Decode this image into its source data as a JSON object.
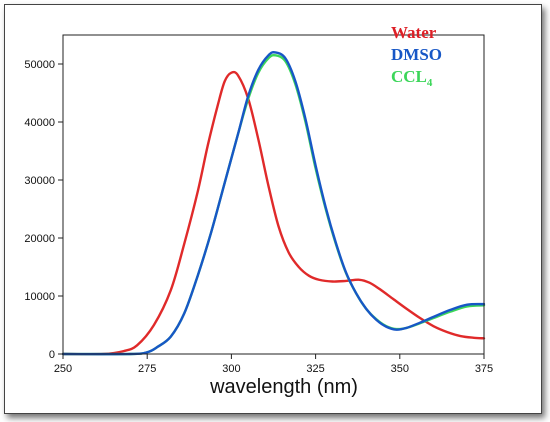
{
  "chart_data": {
    "type": "line",
    "title": "",
    "xlabel": "wavelength (nm)",
    "ylabel": "",
    "xlim": [
      250,
      375
    ],
    "ylim": [
      0,
      55000
    ],
    "x_ticks": [
      250,
      275,
      300,
      325,
      350,
      375
    ],
    "y_ticks": [
      0,
      10000,
      20000,
      30000,
      40000,
      50000
    ],
    "x_tick_labels": [
      "250",
      "275",
      "300",
      "325",
      "350",
      "375"
    ],
    "y_tick_labels": [
      "0",
      "10000",
      "20000",
      "30000",
      "40000",
      "50000"
    ],
    "grid": false,
    "legend_position": "top-right",
    "legend": [
      {
        "label": "Water",
        "sub": "",
        "color": "#dd1f26"
      },
      {
        "label": "DMSO",
        "sub": "",
        "color": "#1757c6"
      },
      {
        "label": "CCL",
        "sub": "4",
        "color": "#3cd65a"
      }
    ],
    "series": [
      {
        "name": "Water",
        "color": "#e02a2a",
        "points": [
          [
            250,
            0
          ],
          [
            262,
            0
          ],
          [
            268,
            500
          ],
          [
            272,
            1500
          ],
          [
            277,
            5000
          ],
          [
            282,
            11000
          ],
          [
            286,
            19000
          ],
          [
            290,
            28000
          ],
          [
            293,
            36000
          ],
          [
            296,
            43000
          ],
          [
            298,
            47000
          ],
          [
            300,
            48500
          ],
          [
            302,
            48000
          ],
          [
            305,
            44000
          ],
          [
            308,
            37000
          ],
          [
            311,
            29000
          ],
          [
            314,
            22000
          ],
          [
            317,
            17500
          ],
          [
            320,
            15000
          ],
          [
            323,
            13500
          ],
          [
            326,
            12800
          ],
          [
            330,
            12500
          ],
          [
            334,
            12600
          ],
          [
            338,
            12800
          ],
          [
            341,
            12300
          ],
          [
            344,
            11200
          ],
          [
            348,
            9500
          ],
          [
            352,
            7800
          ],
          [
            356,
            6200
          ],
          [
            360,
            4800
          ],
          [
            364,
            3800
          ],
          [
            368,
            3100
          ],
          [
            372,
            2800
          ],
          [
            375,
            2700
          ]
        ]
      },
      {
        "name": "CCL4",
        "color": "#3cd65a",
        "points": [
          [
            250,
            0
          ],
          [
            270,
            0
          ],
          [
            275,
            300
          ],
          [
            278,
            1200
          ],
          [
            282,
            3000
          ],
          [
            286,
            7000
          ],
          [
            290,
            13500
          ],
          [
            294,
            21000
          ],
          [
            298,
            29500
          ],
          [
            302,
            38000
          ],
          [
            305,
            44000
          ],
          [
            308,
            48500
          ],
          [
            311,
            51000
          ],
          [
            313,
            51500
          ],
          [
            316,
            50500
          ],
          [
            319,
            46500
          ],
          [
            322,
            40000
          ],
          [
            325,
            32000
          ],
          [
            328,
            25000
          ],
          [
            331,
            19000
          ],
          [
            334,
            14000
          ],
          [
            337,
            10500
          ],
          [
            340,
            7800
          ],
          [
            343,
            6000
          ],
          [
            346,
            4800
          ],
          [
            349,
            4300
          ],
          [
            352,
            4500
          ],
          [
            356,
            5300
          ],
          [
            360,
            6200
          ],
          [
            365,
            7300
          ],
          [
            370,
            8200
          ],
          [
            375,
            8400
          ]
        ]
      },
      {
        "name": "DMSO",
        "color": "#1757c6",
        "points": [
          [
            250,
            0
          ],
          [
            270,
            0
          ],
          [
            275,
            300
          ],
          [
            278,
            1200
          ],
          [
            282,
            3000
          ],
          [
            286,
            7000
          ],
          [
            290,
            13500
          ],
          [
            294,
            21000
          ],
          [
            298,
            29500
          ],
          [
            302,
            38000
          ],
          [
            305,
            44500
          ],
          [
            308,
            49000
          ],
          [
            311,
            51500
          ],
          [
            313,
            52000
          ],
          [
            316,
            51000
          ],
          [
            319,
            47000
          ],
          [
            322,
            40500
          ],
          [
            325,
            32500
          ],
          [
            328,
            25300
          ],
          [
            331,
            19200
          ],
          [
            334,
            14100
          ],
          [
            337,
            10500
          ],
          [
            340,
            7800
          ],
          [
            343,
            5900
          ],
          [
            346,
            4700
          ],
          [
            349,
            4200
          ],
          [
            352,
            4500
          ],
          [
            356,
            5400
          ],
          [
            360,
            6400
          ],
          [
            365,
            7600
          ],
          [
            370,
            8500
          ],
          [
            375,
            8600
          ]
        ]
      }
    ]
  }
}
